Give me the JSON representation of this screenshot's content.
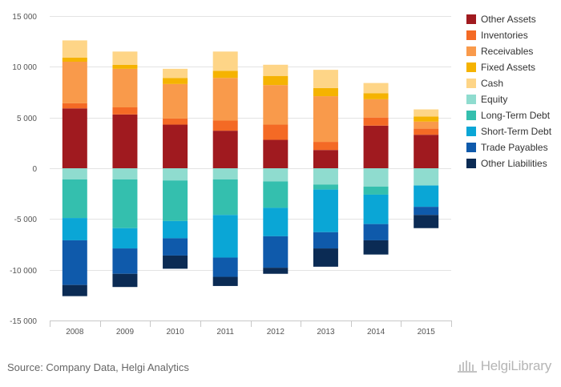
{
  "chart_data": {
    "type": "bar",
    "stacked": true,
    "categories": [
      "2008",
      "2009",
      "2010",
      "2011",
      "2012",
      "2013",
      "2014",
      "2015"
    ],
    "ylim": [
      -15000,
      15000
    ],
    "yticks": [
      15000,
      10000,
      5000,
      0,
      -5000,
      -10000,
      -15000
    ],
    "ytick_labels": [
      "15 000",
      "10 000",
      "5 000",
      "0",
      "-5 000",
      "-10 000",
      "-15 000"
    ],
    "legend_position": "right",
    "grid": true,
    "series": [
      {
        "name": "Other Assets",
        "side": "positive",
        "color": "#a01a1f",
        "values": [
          5900,
          5300,
          4300,
          3700,
          2800,
          1800,
          4200,
          3300
        ]
      },
      {
        "name": "Inventories",
        "side": "positive",
        "color": "#f46a25",
        "values": [
          500,
          700,
          600,
          1000,
          1500,
          800,
          800,
          600
        ]
      },
      {
        "name": "Receivables",
        "side": "positive",
        "color": "#f99a4b",
        "values": [
          4100,
          3800,
          3400,
          4200,
          3900,
          4500,
          1800,
          700
        ]
      },
      {
        "name": "Fixed Assets",
        "side": "positive",
        "color": "#f5b301",
        "values": [
          400,
          400,
          600,
          700,
          900,
          800,
          600,
          500
        ]
      },
      {
        "name": "Cash",
        "side": "positive",
        "color": "#fed587",
        "values": [
          1700,
          1300,
          900,
          1900,
          1100,
          1800,
          1000,
          700
        ]
      },
      {
        "name": "Equity",
        "side": "negative",
        "color": "#8fdccf",
        "values": [
          1100,
          1100,
          1200,
          1100,
          1300,
          1600,
          1800,
          1700
        ]
      },
      {
        "name": "Long-Term Debt",
        "side": "negative",
        "color": "#34bfae",
        "values": [
          3800,
          4800,
          4000,
          3500,
          2600,
          500,
          800,
          0
        ]
      },
      {
        "name": "Short-Term Debt",
        "side": "negative",
        "color": "#0aa6d6",
        "values": [
          2200,
          2000,
          1700,
          4200,
          2800,
          4200,
          2900,
          2100
        ]
      },
      {
        "name": "Trade Payables",
        "side": "negative",
        "color": "#0f5aab",
        "values": [
          4400,
          2500,
          1700,
          1900,
          3100,
          1600,
          1600,
          800
        ]
      },
      {
        "name": "Other Liabilities",
        "side": "negative",
        "color": "#0b2b54",
        "values": [
          1100,
          1300,
          1300,
          900,
          600,
          1800,
          1400,
          1300
        ]
      }
    ]
  },
  "footer": {
    "source": "Source: Company Data, Helgi Analytics",
    "brand": "HelgiLibrary"
  }
}
